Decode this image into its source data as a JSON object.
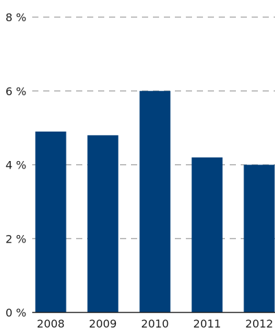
{
  "chart_data": {
    "type": "bar",
    "title": "",
    "xlabel": "",
    "ylabel": "",
    "categories": [
      "2008",
      "2009",
      "2010",
      "2011",
      "2012"
    ],
    "values": [
      4.9,
      4.8,
      6.0,
      4.2,
      4.0
    ],
    "ylim": [
      0,
      8
    ],
    "yticks": [
      0,
      2,
      4,
      6,
      8
    ],
    "ytick_labels": [
      "0 %",
      "2 %",
      "4 %",
      "6 %",
      "8 %"
    ],
    "grid": true,
    "grid_style": "dashed",
    "legend": "none",
    "colors": {
      "bar": "#003f7a",
      "grid": "#9a9a9a",
      "axis": "#222222",
      "text": "#222222"
    }
  }
}
